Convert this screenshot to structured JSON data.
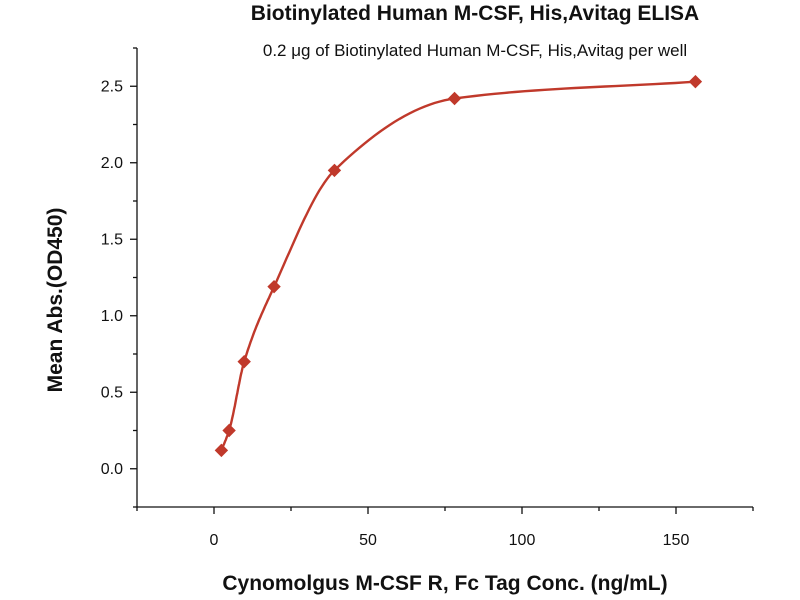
{
  "chart_data": {
    "type": "scatter",
    "title": "Biotinylated Human M-CSF, His,Avitag ELISA",
    "subtitle": "0.2 μg of Biotinylated Human M-CSF, His,Avitag per well",
    "xlabel": "Cynomolgus M-CSF R, Fc Tag Conc. (ng/mL)",
    "ylabel": "Mean Abs.(OD450)",
    "xlim": [
      -25,
      175
    ],
    "ylim": [
      -0.25,
      2.75
    ],
    "x_ticks": [
      0,
      50,
      100,
      150
    ],
    "y_ticks": [
      0.0,
      0.5,
      1.0,
      1.5,
      2.0,
      2.5
    ],
    "x_tick_labels": [
      "0",
      "50",
      "100",
      "150"
    ],
    "y_tick_labels": [
      "0.0",
      "0.5",
      "1.0",
      "1.5",
      "2.0",
      "2.5"
    ],
    "grid": false,
    "marker": "diamond",
    "color": "#c0392b",
    "series": [
      {
        "points": [
          {
            "x": 2.4,
            "y": 0.12
          },
          {
            "x": 4.9,
            "y": 0.25
          },
          {
            "x": 9.8,
            "y": 0.7
          },
          {
            "x": 19.5,
            "y": 1.19
          },
          {
            "x": 39.1,
            "y": 1.95
          },
          {
            "x": 78.1,
            "y": 2.42
          },
          {
            "x": 156.3,
            "y": 2.53
          }
        ],
        "fit": "4-parameter logistic curve"
      }
    ]
  }
}
